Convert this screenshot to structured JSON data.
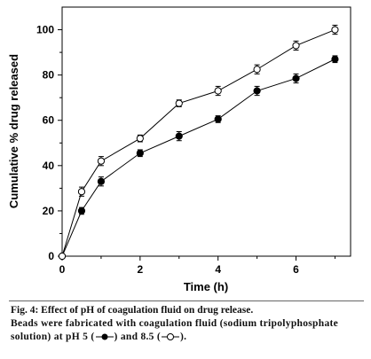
{
  "chart_data": {
    "type": "line",
    "title": "",
    "xlabel": "Time (h)",
    "ylabel": "Cumulative % drug released",
    "xlim": [
      0,
      7.4
    ],
    "ylim": [
      0,
      110
    ],
    "xticks": [
      0,
      2,
      4,
      6
    ],
    "yticks": [
      0,
      20,
      40,
      60,
      80,
      100
    ],
    "grid": false,
    "legend": "none",
    "series": [
      {
        "marker": "filled-circle",
        "color": "#000000",
        "x": [
          0,
          0.5,
          1,
          2,
          3,
          4,
          5,
          6,
          7
        ],
        "y": [
          0,
          20,
          33,
          45.5,
          53,
          60.5,
          73,
          78.5,
          87
        ],
        "err": [
          0,
          1.5,
          2,
          1.5,
          2,
          1.5,
          2,
          2,
          1.5
        ]
      },
      {
        "marker": "open-circle",
        "color": "#000000",
        "x": [
          0,
          0.5,
          1,
          2,
          3,
          4,
          5,
          6,
          7
        ],
        "y": [
          0,
          28.5,
          42,
          52,
          67.5,
          73,
          82.5,
          93,
          100
        ],
        "err": [
          0,
          2,
          2,
          1.5,
          1.5,
          2,
          2,
          2,
          2
        ]
      }
    ]
  },
  "caption": {
    "title": "Fig. 4: Effect of pH of coagulation fluid on drug release.",
    "body_part1": "Beads were fabricated with coagulation fluid (sodium tripolyphosphate solution) at pH 5 (",
    "body_part2": ") and 8.5 (",
    "body_part3": ")."
  }
}
